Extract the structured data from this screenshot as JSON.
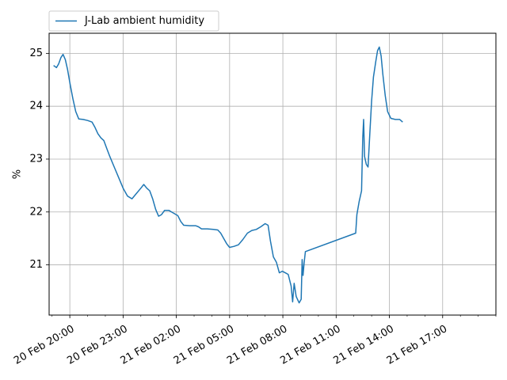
{
  "chart_data": {
    "type": "line",
    "ylabel": "%",
    "xlabel": "",
    "title": "",
    "ylim": [
      20.05,
      25.38
    ],
    "xlim": [
      "2024-02-20 18:50",
      "2024-02-21 20:00"
    ],
    "grid": true,
    "legend_position": "top-left",
    "y_ticks": [
      21,
      22,
      23,
      24,
      25
    ],
    "x_ticks": [
      {
        "t": "2024-02-20 20:00",
        "label": "20 Feb 20:00"
      },
      {
        "t": "2024-02-20 23:00",
        "label": "20 Feb 23:00"
      },
      {
        "t": "2024-02-21 02:00",
        "label": "21 Feb 02:00"
      },
      {
        "t": "2024-02-21 05:00",
        "label": "21 Feb 05:00"
      },
      {
        "t": "2024-02-21 08:00",
        "label": "21 Feb 08:00"
      },
      {
        "t": "2024-02-21 11:00",
        "label": "21 Feb 11:00"
      },
      {
        "t": "2024-02-21 14:00",
        "label": "21 Feb 14:00"
      },
      {
        "t": "2024-02-21 17:00",
        "label": "21 Feb 17:00"
      }
    ],
    "series": [
      {
        "name": "J-Lab ambient humidity",
        "color": "#1f77b4",
        "points": [
          [
            "2024-02-20 19:05",
            24.77
          ],
          [
            "2024-02-20 19:15",
            24.73
          ],
          [
            "2024-02-20 19:22",
            24.8
          ],
          [
            "2024-02-20 19:30",
            24.92
          ],
          [
            "2024-02-20 19:37",
            24.98
          ],
          [
            "2024-02-20 19:45",
            24.88
          ],
          [
            "2024-02-20 19:52",
            24.7
          ],
          [
            "2024-02-20 20:00",
            24.45
          ],
          [
            "2024-02-20 20:10",
            24.15
          ],
          [
            "2024-02-20 20:20",
            23.9
          ],
          [
            "2024-02-20 20:30",
            23.76
          ],
          [
            "2024-02-20 20:45",
            23.75
          ],
          [
            "2024-02-20 21:00",
            23.73
          ],
          [
            "2024-02-20 21:15",
            23.7
          ],
          [
            "2024-02-20 21:25",
            23.6
          ],
          [
            "2024-02-20 21:35",
            23.48
          ],
          [
            "2024-02-20 21:45",
            23.4
          ],
          [
            "2024-02-20 21:55",
            23.35
          ],
          [
            "2024-02-20 22:05",
            23.2
          ],
          [
            "2024-02-20 22:15",
            23.05
          ],
          [
            "2024-02-20 22:30",
            22.85
          ],
          [
            "2024-02-20 22:45",
            22.65
          ],
          [
            "2024-02-20 23:00",
            22.45
          ],
          [
            "2024-02-20 23:15",
            22.3
          ],
          [
            "2024-02-20 23:30",
            22.25
          ],
          [
            "2024-02-20 23:45",
            22.35
          ],
          [
            "2024-02-21 00:00",
            22.45
          ],
          [
            "2024-02-21 00:10",
            22.52
          ],
          [
            "2024-02-21 00:20",
            22.45
          ],
          [
            "2024-02-21 00:30",
            22.4
          ],
          [
            "2024-02-21 00:40",
            22.25
          ],
          [
            "2024-02-21 00:50",
            22.05
          ],
          [
            "2024-02-21 01:00",
            21.92
          ],
          [
            "2024-02-21 01:10",
            21.95
          ],
          [
            "2024-02-21 01:20",
            22.03
          ],
          [
            "2024-02-21 01:35",
            22.03
          ],
          [
            "2024-02-21 01:50",
            21.98
          ],
          [
            "2024-02-21 02:05",
            21.93
          ],
          [
            "2024-02-21 02:15",
            21.82
          ],
          [
            "2024-02-21 02:25",
            21.75
          ],
          [
            "2024-02-21 02:45",
            21.74
          ],
          [
            "2024-02-21 03:05",
            21.74
          ],
          [
            "2024-02-21 03:15",
            21.72
          ],
          [
            "2024-02-21 03:25",
            21.68
          ],
          [
            "2024-02-21 03:45",
            21.68
          ],
          [
            "2024-02-21 04:05",
            21.67
          ],
          [
            "2024-02-21 04:20",
            21.66
          ],
          [
            "2024-02-21 04:30",
            21.6
          ],
          [
            "2024-02-21 04:40",
            21.5
          ],
          [
            "2024-02-21 04:50",
            21.4
          ],
          [
            "2024-02-21 05:00",
            21.33
          ],
          [
            "2024-02-21 05:15",
            21.35
          ],
          [
            "2024-02-21 05:30",
            21.38
          ],
          [
            "2024-02-21 05:45",
            21.48
          ],
          [
            "2024-02-21 06:00",
            21.6
          ],
          [
            "2024-02-21 06:15",
            21.65
          ],
          [
            "2024-02-21 06:30",
            21.67
          ],
          [
            "2024-02-21 06:45",
            21.72
          ],
          [
            "2024-02-21 07:00",
            21.78
          ],
          [
            "2024-02-21 07:10",
            21.75
          ],
          [
            "2024-02-21 07:18",
            21.45
          ],
          [
            "2024-02-21 07:28",
            21.15
          ],
          [
            "2024-02-21 07:38",
            21.05
          ],
          [
            "2024-02-21 07:48",
            20.85
          ],
          [
            "2024-02-21 07:58",
            20.88
          ],
          [
            "2024-02-21 08:08",
            20.85
          ],
          [
            "2024-02-21 08:18",
            20.82
          ],
          [
            "2024-02-21 08:28",
            20.6
          ],
          [
            "2024-02-21 08:33",
            20.3
          ],
          [
            "2024-02-21 08:38",
            20.65
          ],
          [
            "2024-02-21 08:45",
            20.4
          ],
          [
            "2024-02-21 08:55",
            20.28
          ],
          [
            "2024-02-21 09:02",
            20.35
          ],
          [
            "2024-02-21 09:05",
            21.1
          ],
          [
            "2024-02-21 09:08",
            20.8
          ],
          [
            "2024-02-21 09:12",
            21.05
          ],
          [
            "2024-02-21 09:16",
            21.25
          ],
          [
            "2024-02-21 12:06",
            21.6
          ],
          [
            "2024-02-21 12:10",
            21.95
          ],
          [
            "2024-02-21 12:18",
            22.2
          ],
          [
            "2024-02-21 12:26",
            22.4
          ],
          [
            "2024-02-21 12:30",
            23.4
          ],
          [
            "2024-02-21 12:33",
            23.75
          ],
          [
            "2024-02-21 12:36",
            23.05
          ],
          [
            "2024-02-21 12:42",
            22.9
          ],
          [
            "2024-02-21 12:48",
            22.85
          ],
          [
            "2024-02-21 12:54",
            23.5
          ],
          [
            "2024-02-21 13:00",
            24.1
          ],
          [
            "2024-02-21 13:06",
            24.55
          ],
          [
            "2024-02-21 13:14",
            24.85
          ],
          [
            "2024-02-21 13:20",
            25.05
          ],
          [
            "2024-02-21 13:26",
            25.12
          ],
          [
            "2024-02-21 13:32",
            24.95
          ],
          [
            "2024-02-21 13:38",
            24.6
          ],
          [
            "2024-02-21 13:46",
            24.2
          ],
          [
            "2024-02-21 13:54",
            23.9
          ],
          [
            "2024-02-21 14:05",
            23.77
          ],
          [
            "2024-02-21 14:20",
            23.75
          ],
          [
            "2024-02-21 14:35",
            23.75
          ],
          [
            "2024-02-21 14:45",
            23.7
          ]
        ]
      }
    ]
  }
}
